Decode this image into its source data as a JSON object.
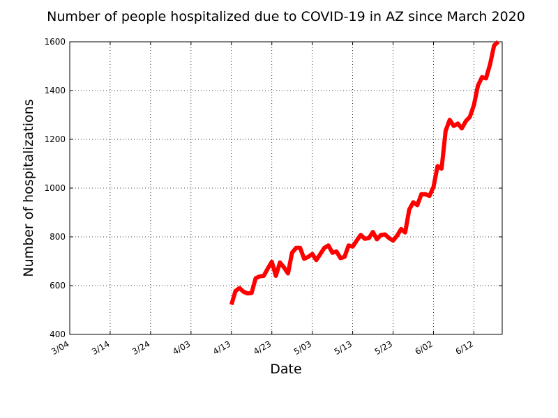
{
  "chart_data": {
    "type": "line",
    "title": "Number of people hospitalized due to COVID-19 in AZ since March 2020",
    "xlabel": "Date",
    "ylabel": "Number of hospitalizations",
    "ylim": [
      400,
      1600
    ],
    "xlim": [
      "2020-03-04",
      "2020-06-19"
    ],
    "grid": true,
    "line_color": "#ff0000",
    "x_ticks": [
      {
        "date": "2020-03-04",
        "label": "3/04"
      },
      {
        "date": "2020-03-14",
        "label": "3/14"
      },
      {
        "date": "2020-03-24",
        "label": "3/24"
      },
      {
        "date": "2020-04-03",
        "label": "4/03"
      },
      {
        "date": "2020-04-13",
        "label": "4/13"
      },
      {
        "date": "2020-04-23",
        "label": "4/23"
      },
      {
        "date": "2020-05-03",
        "label": "5/03"
      },
      {
        "date": "2020-05-13",
        "label": "5/13"
      },
      {
        "date": "2020-05-23",
        "label": "5/23"
      },
      {
        "date": "2020-06-02",
        "label": "6/02"
      },
      {
        "date": "2020-06-12",
        "label": "6/12"
      }
    ],
    "y_ticks": [
      400,
      600,
      800,
      1000,
      1200,
      1400,
      1600
    ],
    "series": [
      {
        "name": "",
        "x": [
          "2020-04-13",
          "2020-04-14",
          "2020-04-15",
          "2020-04-16",
          "2020-04-17",
          "2020-04-18",
          "2020-04-19",
          "2020-04-20",
          "2020-04-21",
          "2020-04-22",
          "2020-04-23",
          "2020-04-24",
          "2020-04-25",
          "2020-04-26",
          "2020-04-27",
          "2020-04-28",
          "2020-04-29",
          "2020-04-30",
          "2020-05-01",
          "2020-05-02",
          "2020-05-03",
          "2020-05-04",
          "2020-05-05",
          "2020-05-06",
          "2020-05-07",
          "2020-05-08",
          "2020-05-09",
          "2020-05-10",
          "2020-05-11",
          "2020-05-12",
          "2020-05-13",
          "2020-05-14",
          "2020-05-15",
          "2020-05-16",
          "2020-05-17",
          "2020-05-18",
          "2020-05-19",
          "2020-05-20",
          "2020-05-21",
          "2020-05-22",
          "2020-05-23",
          "2020-05-24",
          "2020-05-25",
          "2020-05-26",
          "2020-05-27",
          "2020-05-28",
          "2020-05-29",
          "2020-05-30",
          "2020-05-31",
          "2020-06-01",
          "2020-06-02",
          "2020-06-03",
          "2020-06-04",
          "2020-06-05",
          "2020-06-06",
          "2020-06-07",
          "2020-06-08",
          "2020-06-09",
          "2020-06-10",
          "2020-06-11",
          "2020-06-12",
          "2020-06-13",
          "2020-06-14",
          "2020-06-15",
          "2020-06-16",
          "2020-06-17",
          "2020-06-18"
        ],
        "y": [
          522,
          578,
          590,
          575,
          568,
          570,
          630,
          638,
          640,
          670,
          698,
          640,
          695,
          675,
          650,
          735,
          755,
          755,
          710,
          718,
          730,
          705,
          730,
          755,
          765,
          735,
          740,
          713,
          718,
          765,
          760,
          785,
          808,
          792,
          795,
          820,
          790,
          808,
          810,
          795,
          785,
          805,
          832,
          818,
          912,
          942,
          930,
          975,
          975,
          968,
          1005,
          1090,
          1080,
          1235,
          1280,
          1255,
          1265,
          1245,
          1275,
          1292,
          1340,
          1420,
          1455,
          1450,
          1508,
          1585,
          1600
        ]
      }
    ]
  }
}
